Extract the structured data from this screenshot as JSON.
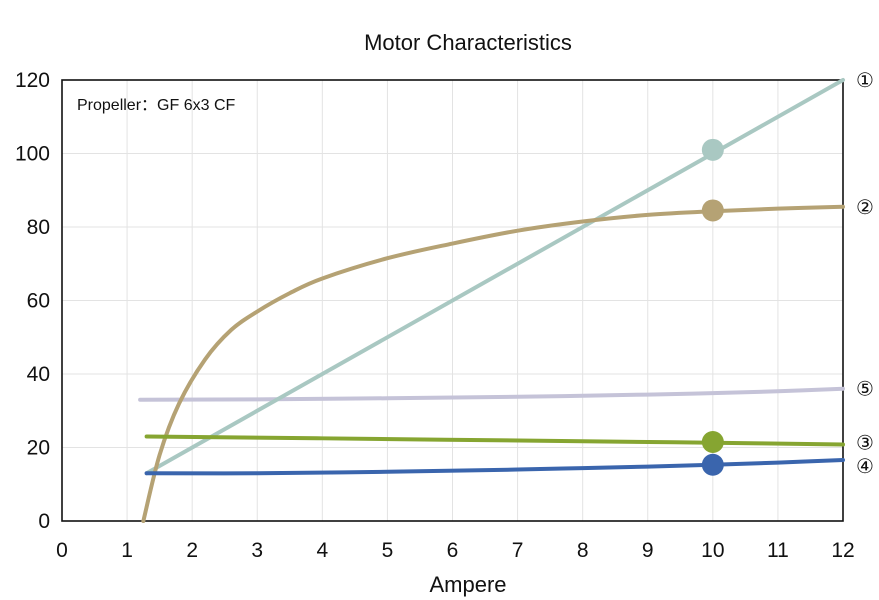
{
  "chart_data": {
    "type": "line",
    "title": "Motor Characteristics",
    "xlabel": "Ampere",
    "ylabel": "",
    "xlim": [
      0,
      12
    ],
    "ylim": [
      0,
      120
    ],
    "xticks": [
      "0",
      "1",
      "2",
      "3",
      "4",
      "5",
      "6",
      "7",
      "8",
      "9",
      "10",
      "11",
      "12"
    ],
    "yticks": [
      "0",
      "20",
      "40",
      "60",
      "80",
      "100",
      "120"
    ],
    "grid": true,
    "annotation": "Propeller：GF 6x3 CF",
    "colors": {
      "series1": "#a9c8c2",
      "series2": "#b5a274",
      "series3": "#86a531",
      "series4": "#3a65ad",
      "series5": "#c5c3d8"
    },
    "series": [
      {
        "label": "①",
        "color": "#a9c8c2",
        "points": [
          [
            1.3,
            13
          ],
          [
            12,
            120
          ]
        ],
        "marker": [
          10,
          101
        ]
      },
      {
        "label": "②",
        "color": "#b5a274",
        "points": [
          [
            1.25,
            0
          ],
          [
            1.5,
            18
          ],
          [
            1.8,
            32
          ],
          [
            2.2,
            44
          ],
          [
            2.6,
            52
          ],
          [
            3,
            57
          ],
          [
            3.5,
            62
          ],
          [
            4,
            66
          ],
          [
            5,
            71.5
          ],
          [
            6,
            75.5
          ],
          [
            7,
            79
          ],
          [
            8,
            81.5
          ],
          [
            9,
            83.3
          ],
          [
            10,
            84.3
          ],
          [
            11,
            85
          ],
          [
            12,
            85.5
          ]
        ],
        "marker": [
          10,
          84.5
        ]
      },
      {
        "label": "③",
        "color": "#86a531",
        "points": [
          [
            1.3,
            23
          ],
          [
            4,
            22.5
          ],
          [
            8,
            21.7
          ],
          [
            10,
            21.3
          ],
          [
            12,
            20.8
          ]
        ],
        "marker": [
          10,
          21.5
        ]
      },
      {
        "label": "④",
        "color": "#3a65ad",
        "points": [
          [
            1.3,
            13
          ],
          [
            3,
            13
          ],
          [
            5,
            13.4
          ],
          [
            7,
            14
          ],
          [
            8,
            14.4
          ],
          [
            9,
            14.8
          ],
          [
            10,
            15.3
          ],
          [
            11,
            15.9
          ],
          [
            12,
            16.6
          ]
        ],
        "marker": [
          10,
          15.3
        ]
      },
      {
        "label": "⑤",
        "color": "#c5c3d8",
        "points": [
          [
            1.2,
            33
          ],
          [
            3,
            33.1
          ],
          [
            5,
            33.4
          ],
          [
            7,
            33.8
          ],
          [
            9,
            34.4
          ],
          [
            10,
            34.8
          ],
          [
            11,
            35.3
          ],
          [
            12,
            36
          ]
        ],
        "marker": null
      }
    ]
  }
}
